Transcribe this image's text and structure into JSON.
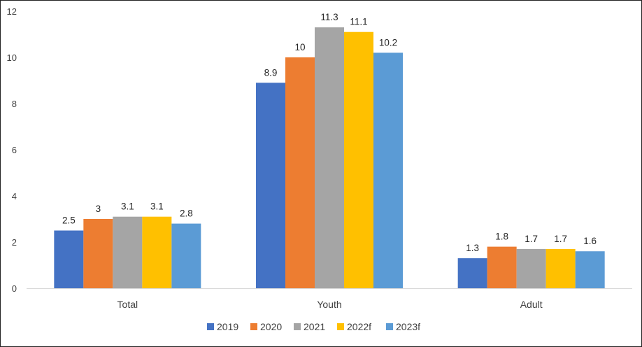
{
  "chart_data": {
    "type": "bar",
    "title": "",
    "xlabel": "",
    "ylabel": "",
    "ylim": [
      0,
      12
    ],
    "yticks": [
      "0",
      "2",
      "4",
      "6",
      "8",
      "10",
      "12"
    ],
    "categories": [
      "Total",
      "Youth",
      "Adult"
    ],
    "series": [
      {
        "name": "2019",
        "color": "#4472C4",
        "values": [
          2.5,
          8.9,
          1.3
        ],
        "labels": [
          "2.5",
          "8.9",
          "1.3"
        ]
      },
      {
        "name": "2020",
        "color": "#ED7D31",
        "values": [
          3,
          10,
          1.8
        ],
        "labels": [
          "3",
          "10",
          "1.8"
        ]
      },
      {
        "name": "2021",
        "color": "#A5A5A5",
        "values": [
          3.1,
          11.3,
          1.7
        ],
        "labels": [
          "3.1",
          "11.3",
          "1.7"
        ]
      },
      {
        "name": "2022f",
        "color": "#FFC000",
        "values": [
          3.1,
          11.1,
          1.7
        ],
        "labels": [
          "3.1",
          "11.1",
          "1.7"
        ]
      },
      {
        "name": "2023f",
        "color": "#5B9BD5",
        "values": [
          2.8,
          10.2,
          1.6
        ],
        "labels": [
          "2.8",
          "10.2",
          "1.6"
        ]
      }
    ],
    "grid": false,
    "legend": "bottom"
  }
}
